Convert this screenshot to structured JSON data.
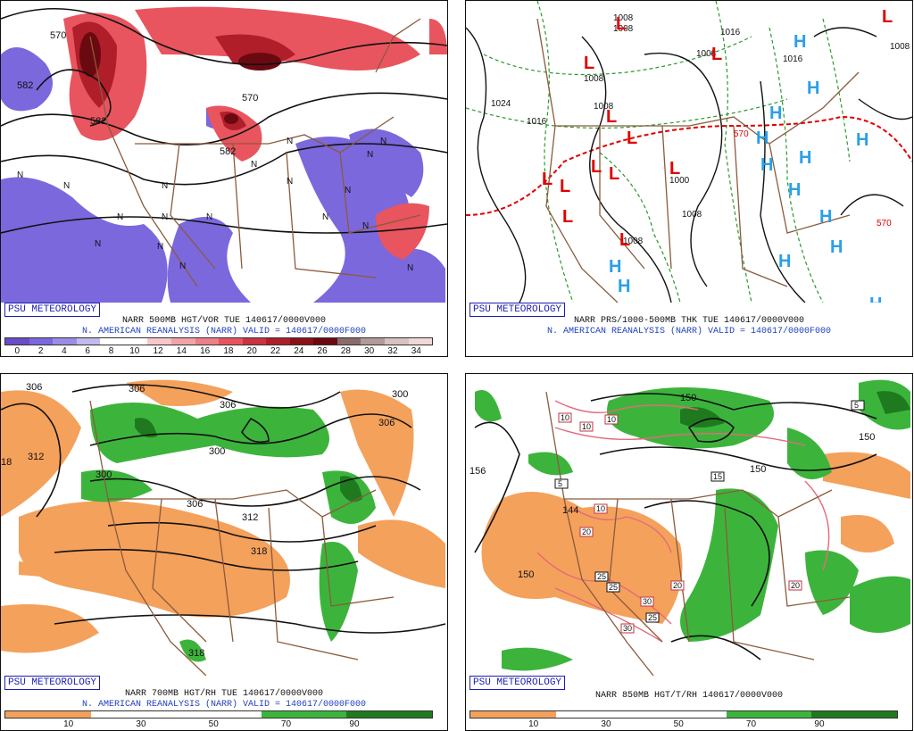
{
  "brand": "PSU METEOROLOGY",
  "colors": {
    "vort_neg": "#7b68dd",
    "vort_pos": "#e8555f",
    "vort_max": "#8b1018",
    "land_border": "#8b5a3c",
    "rh_dry": "#f4a15c",
    "rh_moist": "#3cb43c",
    "rh_wet": "#1f7a1f",
    "low_red": "#e00000",
    "high_blue": "#2aa0e8",
    "thickness_green": "#2a9a2a",
    "thickness_red": "#e00000",
    "temp_pink": "#e46a7a",
    "caption_blue": "#1f3fbf"
  },
  "panels": [
    {
      "id": "vorticity",
      "caption_line1": "NARR 500MB HGT/VOR TUE 140617/0000V000",
      "caption_line2": "N. AMERICAN REANALYSIS (NARR) VALID = 140617/0000F000",
      "colorbar_labels": [
        "0",
        "2",
        "4",
        "6",
        "8",
        "10",
        "12",
        "14",
        "16",
        "18",
        "20",
        "22",
        "24",
        "26",
        "28",
        "30",
        "32",
        "34"
      ],
      "contour_labels": [
        "570",
        "582",
        "582",
        "570",
        "582"
      ],
      "n_marks": [
        "N",
        "N",
        "N",
        "N",
        "N",
        "N",
        "N",
        "N",
        "N",
        "N",
        "N",
        "N",
        "N",
        "N",
        "N",
        "N",
        "N",
        "N"
      ]
    },
    {
      "id": "surface",
      "caption_line1": "NARR PRS/1000-500MB THK TUE 140617/0000V000",
      "caption_line2": "N. AMERICAN REANALYSIS (NARR) VALID = 140617/0000F000",
      "pressure_labels": [
        "1008",
        "1008",
        "1016",
        "1016",
        "1008",
        "1008",
        "1024",
        "1016",
        "1008",
        "1008",
        "1008",
        "1000",
        "1008"
      ],
      "thickness_labels": [
        "570",
        "570"
      ],
      "lows": [
        "L",
        "L",
        "L",
        "L",
        "L",
        "L",
        "L",
        "L",
        "L",
        "L",
        "L",
        "L",
        "L"
      ],
      "highs": [
        "H",
        "H",
        "H",
        "H",
        "H",
        "H",
        "H",
        "H",
        "H",
        "H",
        "H",
        "H",
        "H",
        "H",
        "H"
      ]
    },
    {
      "id": "rh700",
      "caption_line1": "NARR 700MB HGT/RH TUE 140617/0000V000",
      "caption_line2": "N. AMERICAN REANALYSIS (NARR) VALID = 140617/0000F000",
      "colorbar_labels": [
        "10",
        "30",
        "50",
        "70",
        "90"
      ],
      "height_labels": [
        "306",
        "306",
        "306",
        "300",
        "18",
        "312",
        "300",
        "306",
        "300",
        "306",
        "312",
        "318",
        "318"
      ]
    },
    {
      "id": "rh850",
      "caption_line1": "NARR 850MB HGT/T/RH 140617/0000V000",
      "colorbar_labels": [
        "10",
        "30",
        "50",
        "70",
        "90"
      ],
      "height_labels": [
        "150",
        "156",
        "150",
        "150",
        "144",
        "150"
      ],
      "temp_labels": [
        "10",
        "10",
        "10",
        "5",
        "5",
        "15",
        "10",
        "20",
        "25",
        "25",
        "30",
        "25",
        "30",
        "20",
        "20"
      ]
    }
  ]
}
